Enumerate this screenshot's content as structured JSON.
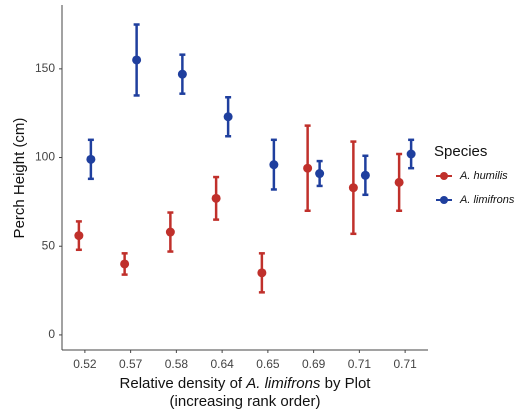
{
  "chart_data": {
    "type": "errorbar",
    "x_label": [
      "Relative density of ",
      "A. limifrons",
      " by Plot"
    ],
    "x_label_line2": "(increasing rank order)",
    "y_label": "Perch Height (cm)",
    "legend_title": "Species",
    "categories": [
      "0.52",
      "0.57",
      "0.58",
      "0.64",
      "0.65",
      "0.69",
      "0.71",
      "0.71"
    ],
    "series": [
      {
        "name": "A. humilis",
        "color": "#c0302b",
        "values": [
          56,
          40,
          58,
          77,
          35,
          94,
          83,
          86
        ],
        "errors": [
          8,
          6,
          11,
          12,
          11,
          24,
          26,
          16
        ]
      },
      {
        "name": "A. limifrons",
        "color": "#1f3f9e",
        "values": [
          99,
          155,
          147,
          123,
          96,
          91,
          90,
          102
        ],
        "errors": [
          11,
          20,
          11,
          11,
          14,
          7,
          11,
          8
        ]
      }
    ],
    "ylim": [
      -8.5,
      186
    ],
    "yticks": [
      0,
      50,
      100,
      150
    ],
    "grid": false,
    "legend": "right"
  }
}
